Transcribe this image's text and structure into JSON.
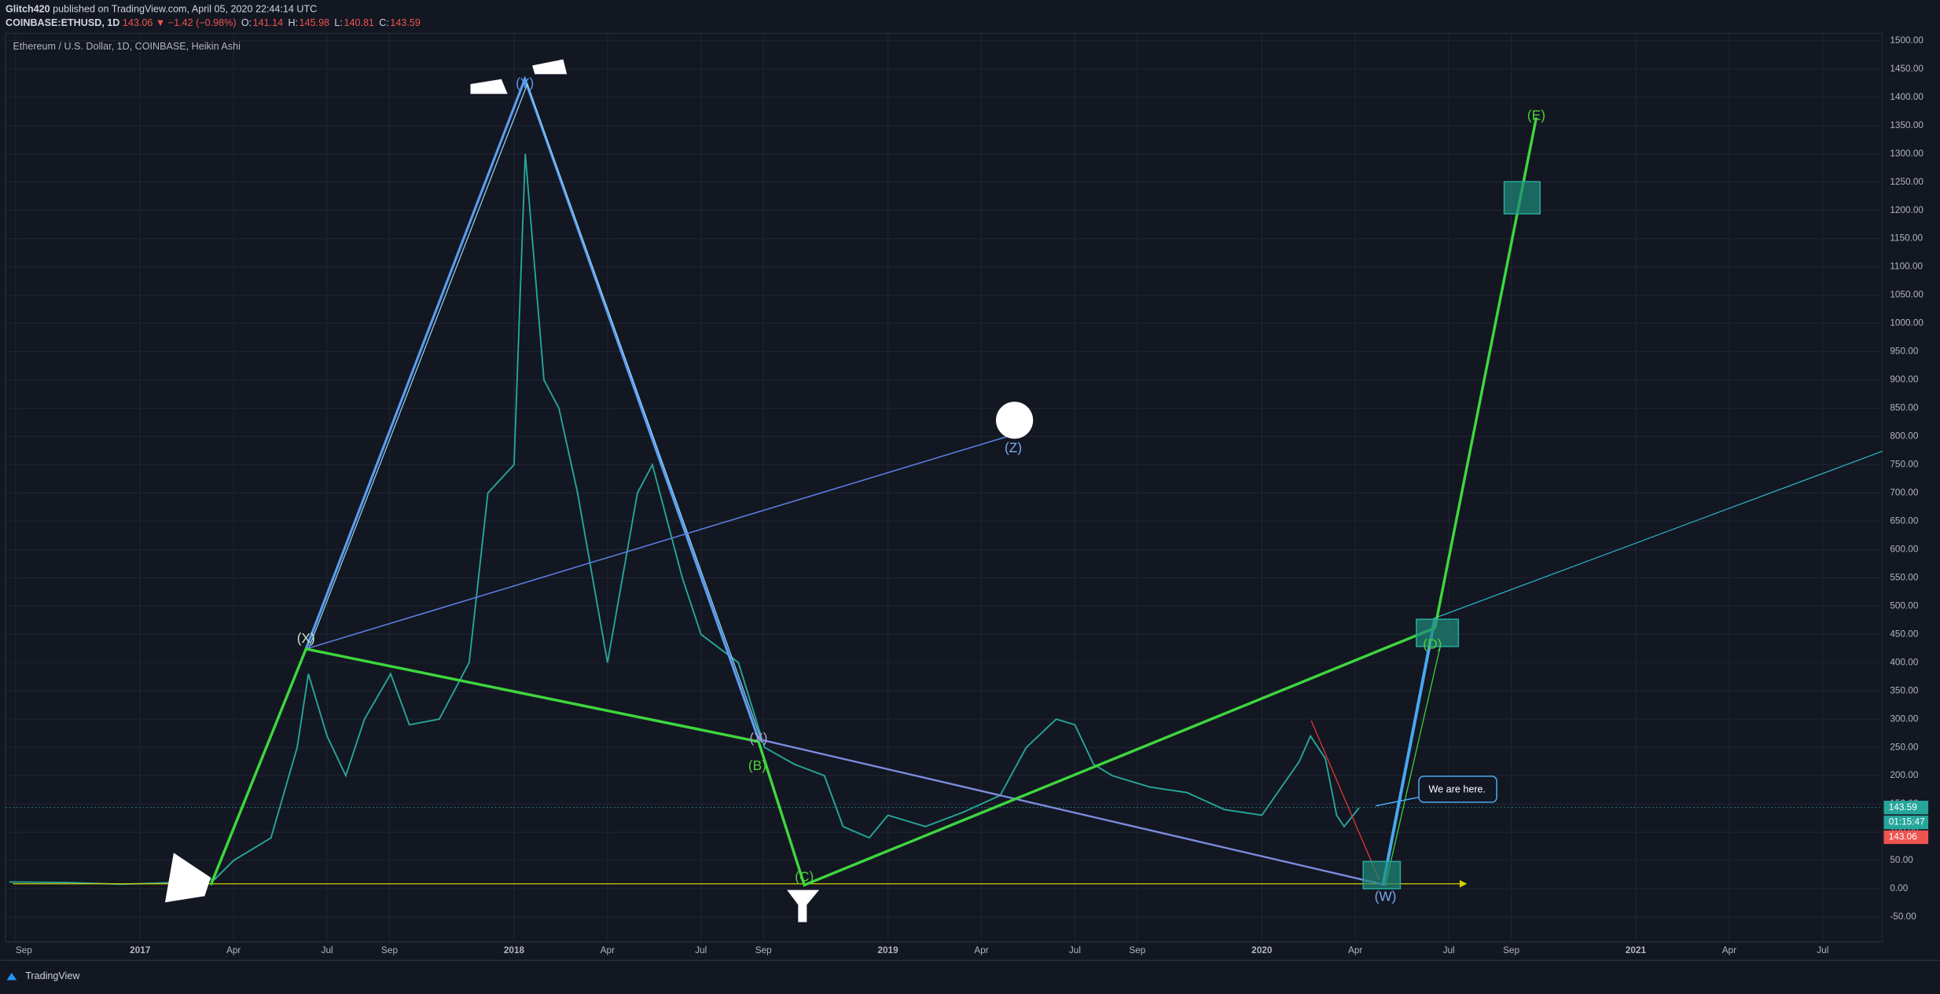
{
  "header": {
    "author": "Glitch420",
    "published": " published on TradingView.com, April 05, 2020 22:44:14 UTC",
    "symbol": "COINBASE:ETHUSD, 1D",
    "change": "143.06 ▼ −1.42 (−0.98%)",
    "ohlc": [
      {
        "label": "O:",
        "value": "141.14"
      },
      {
        "label": "H:",
        "value": "145.98"
      },
      {
        "label": "L:",
        "value": "140.81"
      },
      {
        "label": "C:",
        "value": "143.59"
      }
    ]
  },
  "footer": {
    "brand": "TradingView"
  },
  "chart_data": {
    "type": "line",
    "title": "Ethereum / U.S. Dollar, 1D, COINBASE, Heikin Ashi",
    "x": [
      2016.65,
      2016.8,
      2016.95,
      2017.1,
      2017.2,
      2017.25,
      2017.35,
      2017.42,
      2017.45,
      2017.5,
      2017.55,
      2017.6,
      2017.67,
      2017.72,
      2017.8,
      2017.88,
      2017.93,
      2018.0,
      2018.03,
      2018.08,
      2018.12,
      2018.17,
      2018.25,
      2018.33,
      2018.37,
      2018.45,
      2018.5,
      2018.6,
      2018.67,
      2018.75,
      2018.83,
      2018.88,
      2018.95,
      2019.0,
      2019.1,
      2019.2,
      2019.3,
      2019.37,
      2019.45,
      2019.5,
      2019.55,
      2019.6,
      2019.7,
      2019.8,
      2019.9,
      2020.0,
      2020.1,
      2020.13,
      2020.17,
      2020.2,
      2020.22,
      2020.26
    ],
    "series": [
      {
        "name": "ETHUSD",
        "color": "#26a69a",
        "values": [
          12,
          11,
          8,
          11,
          17,
          50,
          90,
          250,
          380,
          270,
          200,
          300,
          380,
          290,
          300,
          400,
          700,
          750,
          1300,
          900,
          850,
          700,
          400,
          700,
          750,
          550,
          450,
          400,
          250,
          220,
          200,
          110,
          90,
          130,
          110,
          135,
          165,
          250,
          300,
          290,
          220,
          200,
          180,
          170,
          140,
          130,
          225,
          270,
          230,
          130,
          110,
          143
        ]
      }
    ],
    "xlim": [
      2016.64,
      2021.66
    ],
    "xticks": [
      {
        "value": 2016.667,
        "label": "Sep"
      },
      2017,
      {
        "value": 2017.25,
        "label": "Apr"
      },
      {
        "value": 2017.5,
        "label": "Jul"
      },
      {
        "value": 2017.667,
        "label": "Sep"
      },
      2018,
      {
        "value": 2018.25,
        "label": "Apr"
      },
      {
        "value": 2018.5,
        "label": "Jul"
      },
      {
        "value": 2018.667,
        "label": "Sep"
      },
      2019,
      {
        "value": 2019.25,
        "label": "Apr"
      },
      {
        "value": 2019.5,
        "label": "Jul"
      },
      {
        "value": 2019.667,
        "label": "Sep"
      },
      2020,
      {
        "value": 2020.25,
        "label": "Apr"
      },
      {
        "value": 2020.5,
        "label": "Jul"
      },
      {
        "value": 2020.667,
        "label": "Sep"
      },
      2021,
      {
        "value": 2021.25,
        "label": "Apr"
      },
      {
        "value": 2021.5,
        "label": "Jul"
      }
    ],
    "ylim": [
      -94,
      1513
    ],
    "yticks": [
      {
        "value": -50,
        "label": "-50.00"
      },
      {
        "value": 0,
        "label": "0.00"
      },
      {
        "value": 50,
        "label": "50.00"
      },
      {
        "value": 100,
        "label": "100.00"
      },
      {
        "value": 150,
        "label": "150.00"
      },
      {
        "value": 200,
        "label": "200.00"
      },
      {
        "value": 250,
        "label": "250.00"
      },
      {
        "value": 300,
        "label": "300.00"
      },
      {
        "value": 350,
        "label": "350.00"
      },
      {
        "value": 400,
        "label": "400.00"
      },
      {
        "value": 450,
        "label": "450.00"
      },
      {
        "value": 500,
        "label": "500.00"
      },
      {
        "value": 550,
        "label": "550.00"
      },
      {
        "value": 600,
        "label": "600.00"
      },
      {
        "value": 650,
        "label": "650.00"
      },
      {
        "value": 700,
        "label": "700.00"
      },
      {
        "value": 750,
        "label": "750.00"
      },
      {
        "value": 800,
        "label": "800.00"
      },
      {
        "value": 850,
        "label": "850.00"
      },
      {
        "value": 900,
        "label": "900.00"
      },
      {
        "value": 950,
        "label": "950.00"
      },
      {
        "value": 1000,
        "label": "1000.00"
      },
      {
        "value": 1050,
        "label": "1050.00"
      },
      {
        "value": 1100,
        "label": "1100.00"
      },
      {
        "value": 1150,
        "label": "1150.00"
      },
      {
        "value": 1200,
        "label": "1200.00"
      },
      {
        "value": 1250,
        "label": "1250.00"
      },
      {
        "value": 1300,
        "label": "1300.00"
      },
      {
        "value": 1350,
        "label": "1350.00"
      },
      {
        "value": 1400,
        "label": "1400.00"
      },
      {
        "value": 1450,
        "label": "1450.00"
      },
      {
        "value": 1500,
        "label": "1500.00"
      }
    ],
    "grid": true,
    "price_markers": [
      {
        "value": 143.59,
        "color": "#26a69a"
      },
      {
        "value": 143.06,
        "color": "#ef5350"
      }
    ],
    "countdown": "01:15:47",
    "callout": "We are here.",
    "annotations": [
      {
        "text": "(X)",
        "color": "#c8e6c9"
      },
      {
        "text": "(Y)",
        "color": "#5b9cf0"
      },
      {
        "text": "(B)",
        "color": "#4cd137"
      },
      {
        "text": "(C)",
        "color": "#4cd137"
      },
      {
        "text": "(X)",
        "color": "#b39ddb"
      },
      {
        "text": "(Z)",
        "color": "#7aa7f0"
      },
      {
        "text": "(D)",
        "color": "#4cd137"
      },
      {
        "text": "(E)",
        "color": "#4cd137"
      },
      {
        "text": "(W)",
        "color": "#7aa7f0"
      }
    ]
  }
}
